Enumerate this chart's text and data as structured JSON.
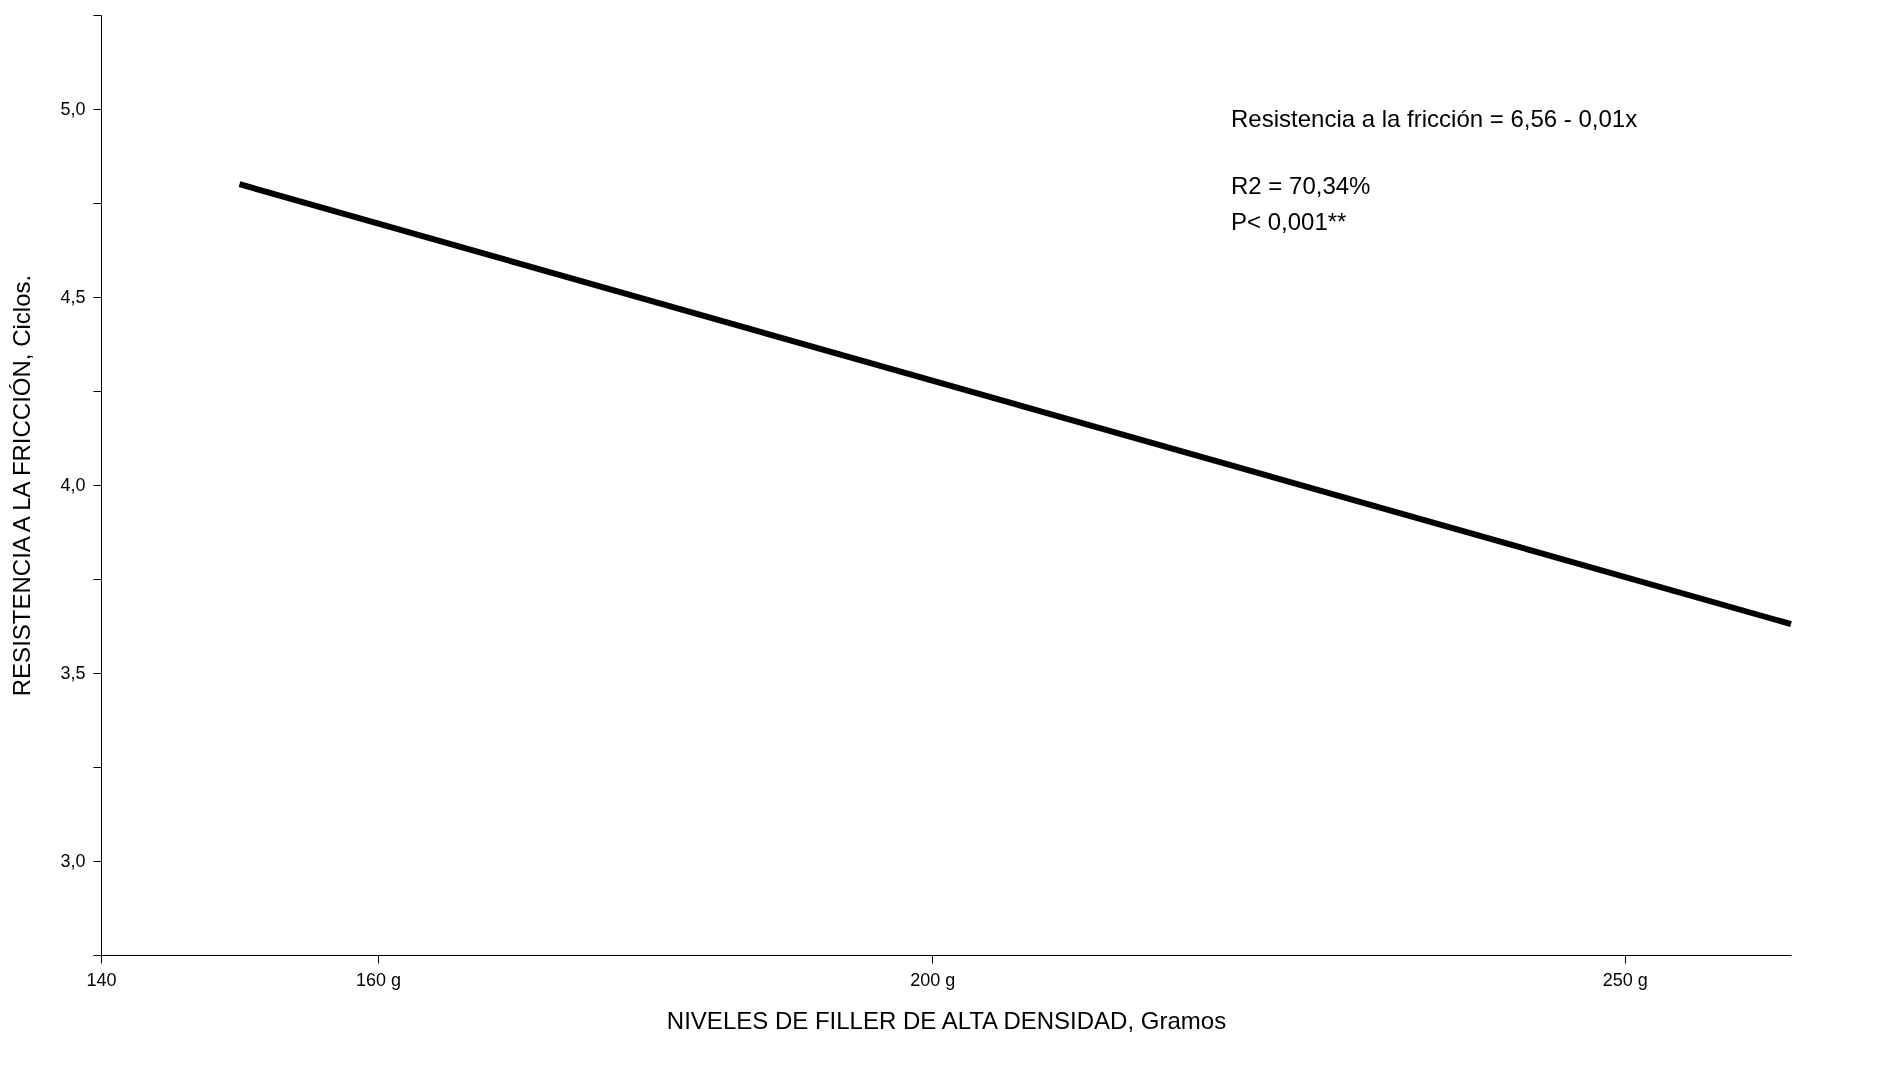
{
  "chart_data": {
    "type": "line",
    "xlabel": "NIVELES DE FILLER DE ALTA DENSIDAD, Gramos",
    "ylabel": "RESISTENCIA A LA FRICCIÓN, Ciclos.",
    "x": [
      150,
      262
    ],
    "series": [
      {
        "color": "#000000",
        "values": [
          4.8,
          3.63
        ]
      }
    ],
    "xlim": [
      140,
      262
    ],
    "xticks": [
      140,
      {
        "value": 160,
        "label": "160 g"
      },
      {
        "value": 200,
        "label": "200 g"
      },
      {
        "value": 250,
        "label": "250 g"
      }
    ],
    "ylim": [
      2.75,
      5.25
    ],
    "yticks": [
      {
        "value": 2.75,
        "label": null
      },
      {
        "value": 3,
        "label": "3,0"
      },
      {
        "value": 3.25,
        "label": null
      },
      {
        "value": 3.5,
        "label": "3,5"
      },
      {
        "value": 3.75,
        "label": null
      },
      {
        "value": 4,
        "label": "4,0"
      },
      {
        "value": 4.25,
        "label": null
      },
      {
        "value": 4.5,
        "label": "4,5"
      },
      {
        "value": 4.75,
        "label": null
      },
      {
        "value": 5,
        "label": "5,0"
      },
      {
        "value": 5.25,
        "label": null
      }
    ],
    "grid": false,
    "marker": "none",
    "line_style": "solid",
    "annotations": [
      "Resistencia a la fricción = 6,56 - 0,01x",
      "R2 = 70,34%",
      "P< 0,001**"
    ]
  }
}
